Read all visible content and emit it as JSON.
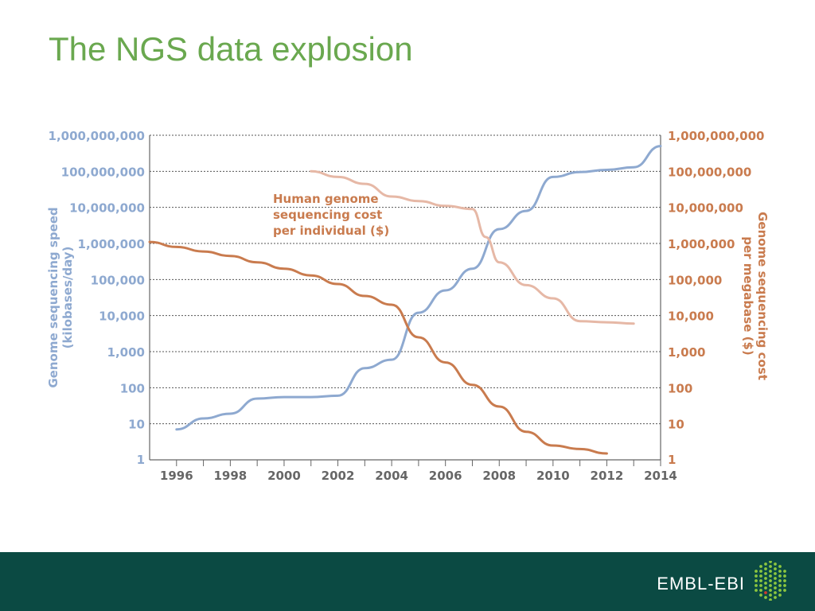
{
  "title": "The NGS data explosion",
  "footer": {
    "logo_text": "EMBL-EBI"
  },
  "colors": {
    "title": "#6aa84f",
    "speed_series": "#8ea9d0",
    "cost_megabase_series": "#c97b4e",
    "cost_individual_series": "#e6b8a6",
    "footer_bg": "#0b4a43",
    "left_axis_text": "#8ea9d0",
    "right_axis_text": "#c97b4e",
    "grid": "#555555"
  },
  "chart_data": {
    "type": "line",
    "scale": "log",
    "grid": true,
    "xlim": [
      1995,
      2014
    ],
    "ylim": [
      1,
      1000000000
    ],
    "x_ticks": [
      "1996",
      "1998",
      "2000",
      "2002",
      "2004",
      "2006",
      "2008",
      "2010",
      "2012",
      "2014"
    ],
    "y_ticks_left": [
      "1",
      "10",
      "100",
      "1,000",
      "10,000",
      "100,000",
      "1,000,000",
      "10,000,000",
      "100,000,000",
      "1,000,000,000"
    ],
    "y_ticks_right": [
      "1",
      "10",
      "100",
      "1,000",
      "10,000",
      "100,000",
      "1,000,000",
      "10,000,000",
      "100,000,000",
      "1,000,000,000"
    ],
    "ylabel_left": "Genome sequencing speed (kilobases/day)",
    "ylabel_right": "Genome sequencing cost per megabase ($)",
    "annotation": "Human genome sequencing cost per individual ($)",
    "series": [
      {
        "key": "speed",
        "axis": "left",
        "x": [
          1996,
          1997,
          1998,
          1999,
          2000,
          2001,
          2002,
          2003,
          2004,
          2005,
          2006,
          2007,
          2008,
          2009,
          2010,
          2011,
          2012,
          2013,
          2014
        ],
        "values": [
          7,
          14,
          19,
          50,
          55,
          55,
          60,
          350,
          600,
          12000,
          50000,
          200000,
          2500000,
          8000000,
          70000000,
          95000000,
          110000000,
          130000000,
          500000000
        ]
      },
      {
        "key": "cost_megabase",
        "axis": "right",
        "x": [
          1995,
          1996,
          1997,
          1998,
          1999,
          2000,
          2001,
          2002,
          2003,
          2004,
          2005,
          2006,
          2007,
          2008,
          2009,
          2010,
          2011,
          2012
        ],
        "values": [
          1100000,
          800000,
          600000,
          450000,
          300000,
          200000,
          130000,
          75000,
          35000,
          20000,
          2500,
          500,
          120,
          30,
          6,
          2.5,
          2,
          1.5
        ]
      },
      {
        "key": "cost_individual",
        "axis": "right",
        "x": [
          2001,
          2002,
          2003,
          2004,
          2005,
          2006,
          2007,
          2007.5,
          2008,
          2009,
          2010,
          2011,
          2012,
          2013
        ],
        "values": [
          100000000,
          70000000,
          45000000,
          20000000,
          15000000,
          11000000,
          9000000,
          1500000,
          300000,
          70000,
          30000,
          7000,
          6500,
          6000
        ]
      }
    ]
  }
}
